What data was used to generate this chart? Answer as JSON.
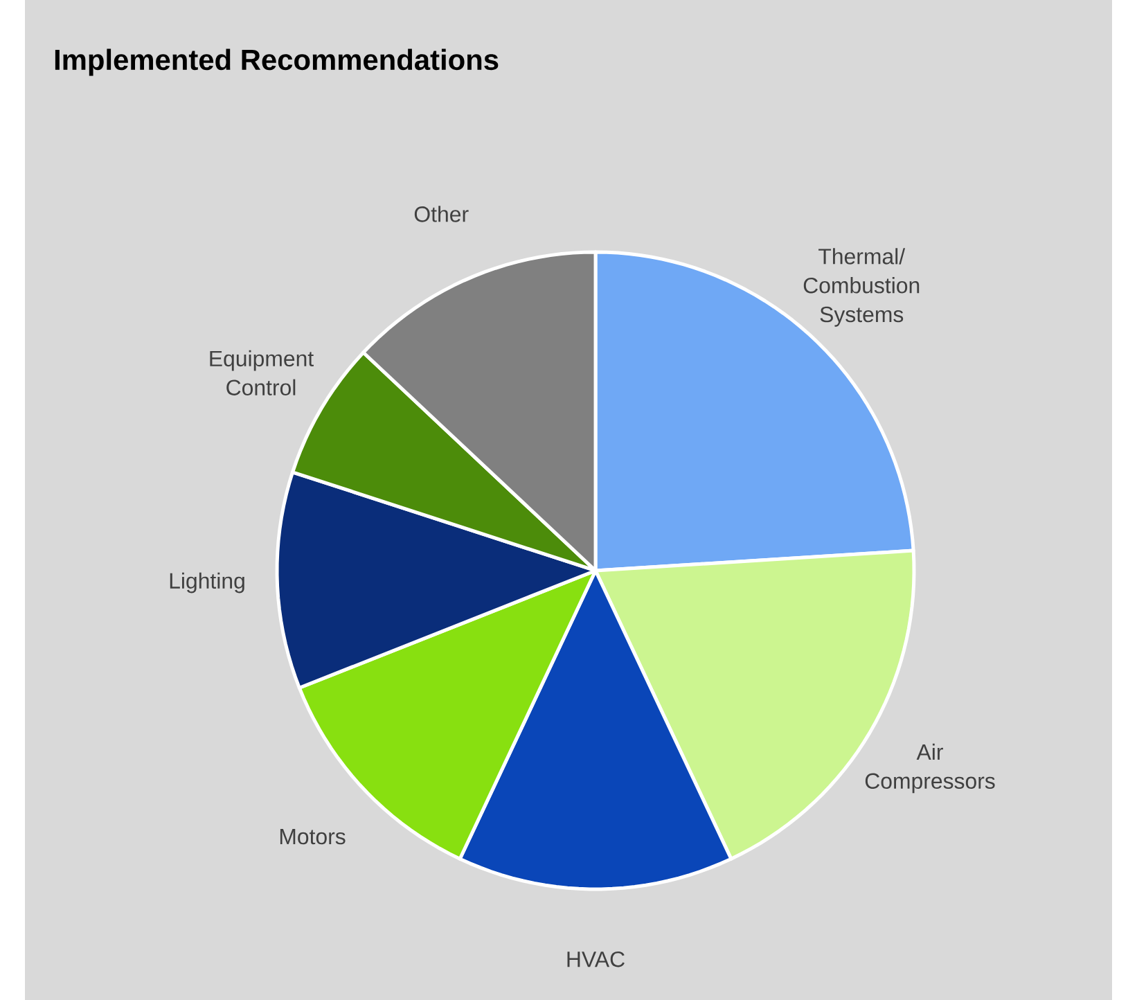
{
  "chart_data": {
    "type": "pie",
    "title": "Implemented Recommendations",
    "categories": [
      "Thermal/ Combustion Systems",
      "Air Compressors",
      "HVAC",
      "Motors",
      "Lighting",
      "Equipment Control",
      "Other"
    ],
    "values": [
      24,
      19,
      14,
      12,
      11,
      7,
      13
    ],
    "colors": [
      "#6fa8f5",
      "#ccf590",
      "#0a46b8",
      "#88e010",
      "#0a2d7a",
      "#4c8c0a",
      "#808080"
    ]
  }
}
